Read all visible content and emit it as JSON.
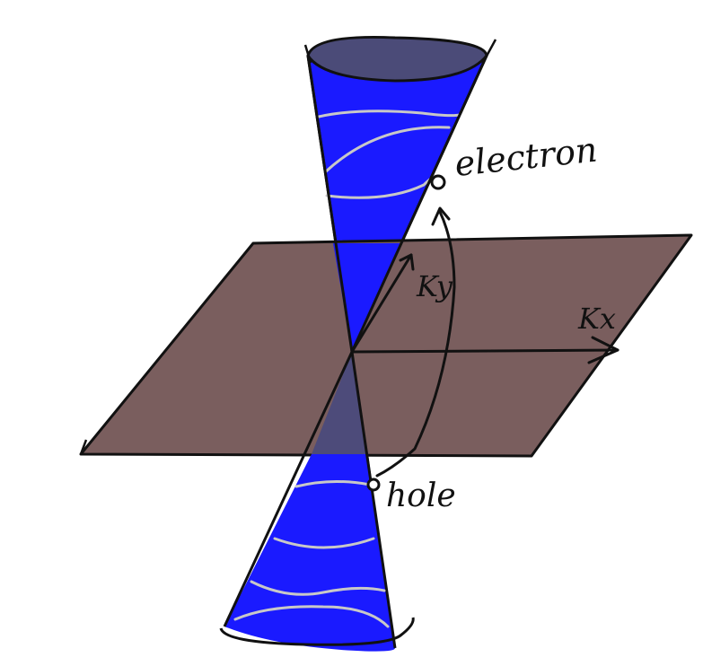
{
  "diagram": {
    "labels": {
      "electron": "electron",
      "hole": "hole",
      "ky": "Ky",
      "kx": "Kx"
    },
    "colors": {
      "cone_fill": "#1a1aff",
      "cone_cap": "#4b4b78",
      "plane_fill": "#7a5e5e",
      "cone_below_plane": "#4d4b7a",
      "ink": "#111111",
      "ring_lines": "#c8c8c8"
    }
  }
}
